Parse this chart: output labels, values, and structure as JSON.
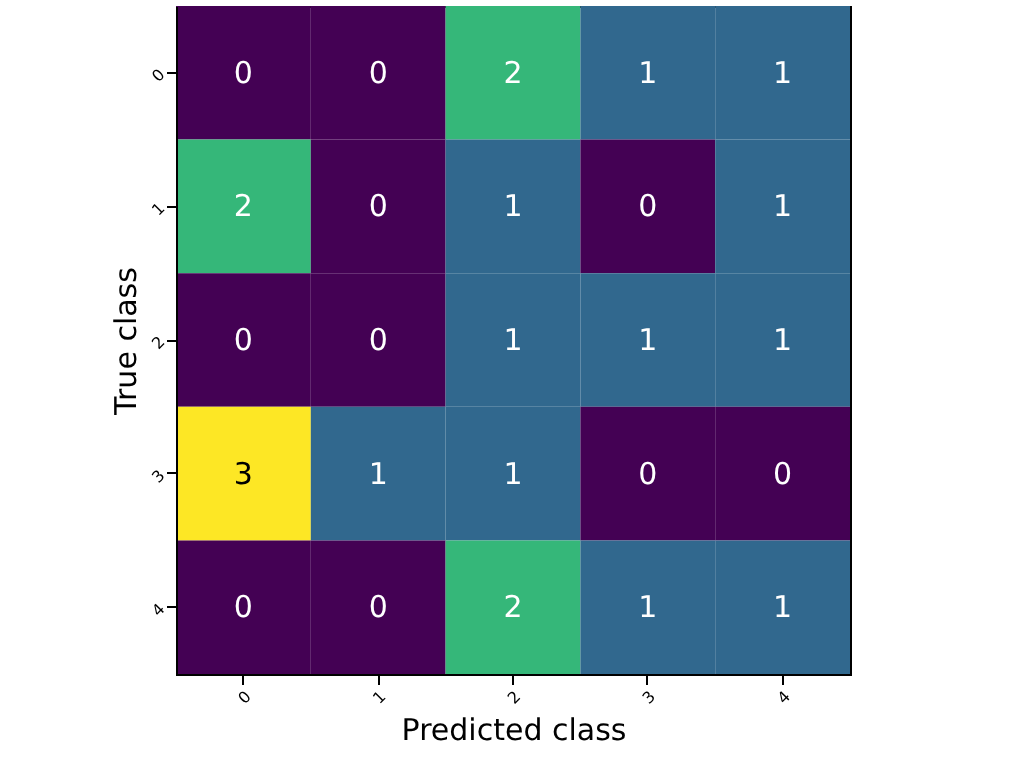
{
  "chart_data": {
    "type": "heatmap",
    "xlabel": "Predicted class",
    "ylabel": "True class",
    "data_labels": true,
    "categories": [
      "0",
      "1",
      "2",
      "3",
      "4"
    ],
    "y_categories": [
      "0",
      "1",
      "2",
      "3",
      "4"
    ],
    "cells": [
      [
        0,
        0,
        2,
        1,
        1
      ],
      [
        2,
        0,
        1,
        0,
        1
      ],
      [
        0,
        0,
        1,
        1,
        1
      ],
      [
        3,
        1,
        1,
        0,
        0
      ],
      [
        0,
        0,
        2,
        1,
        1
      ]
    ]
  }
}
